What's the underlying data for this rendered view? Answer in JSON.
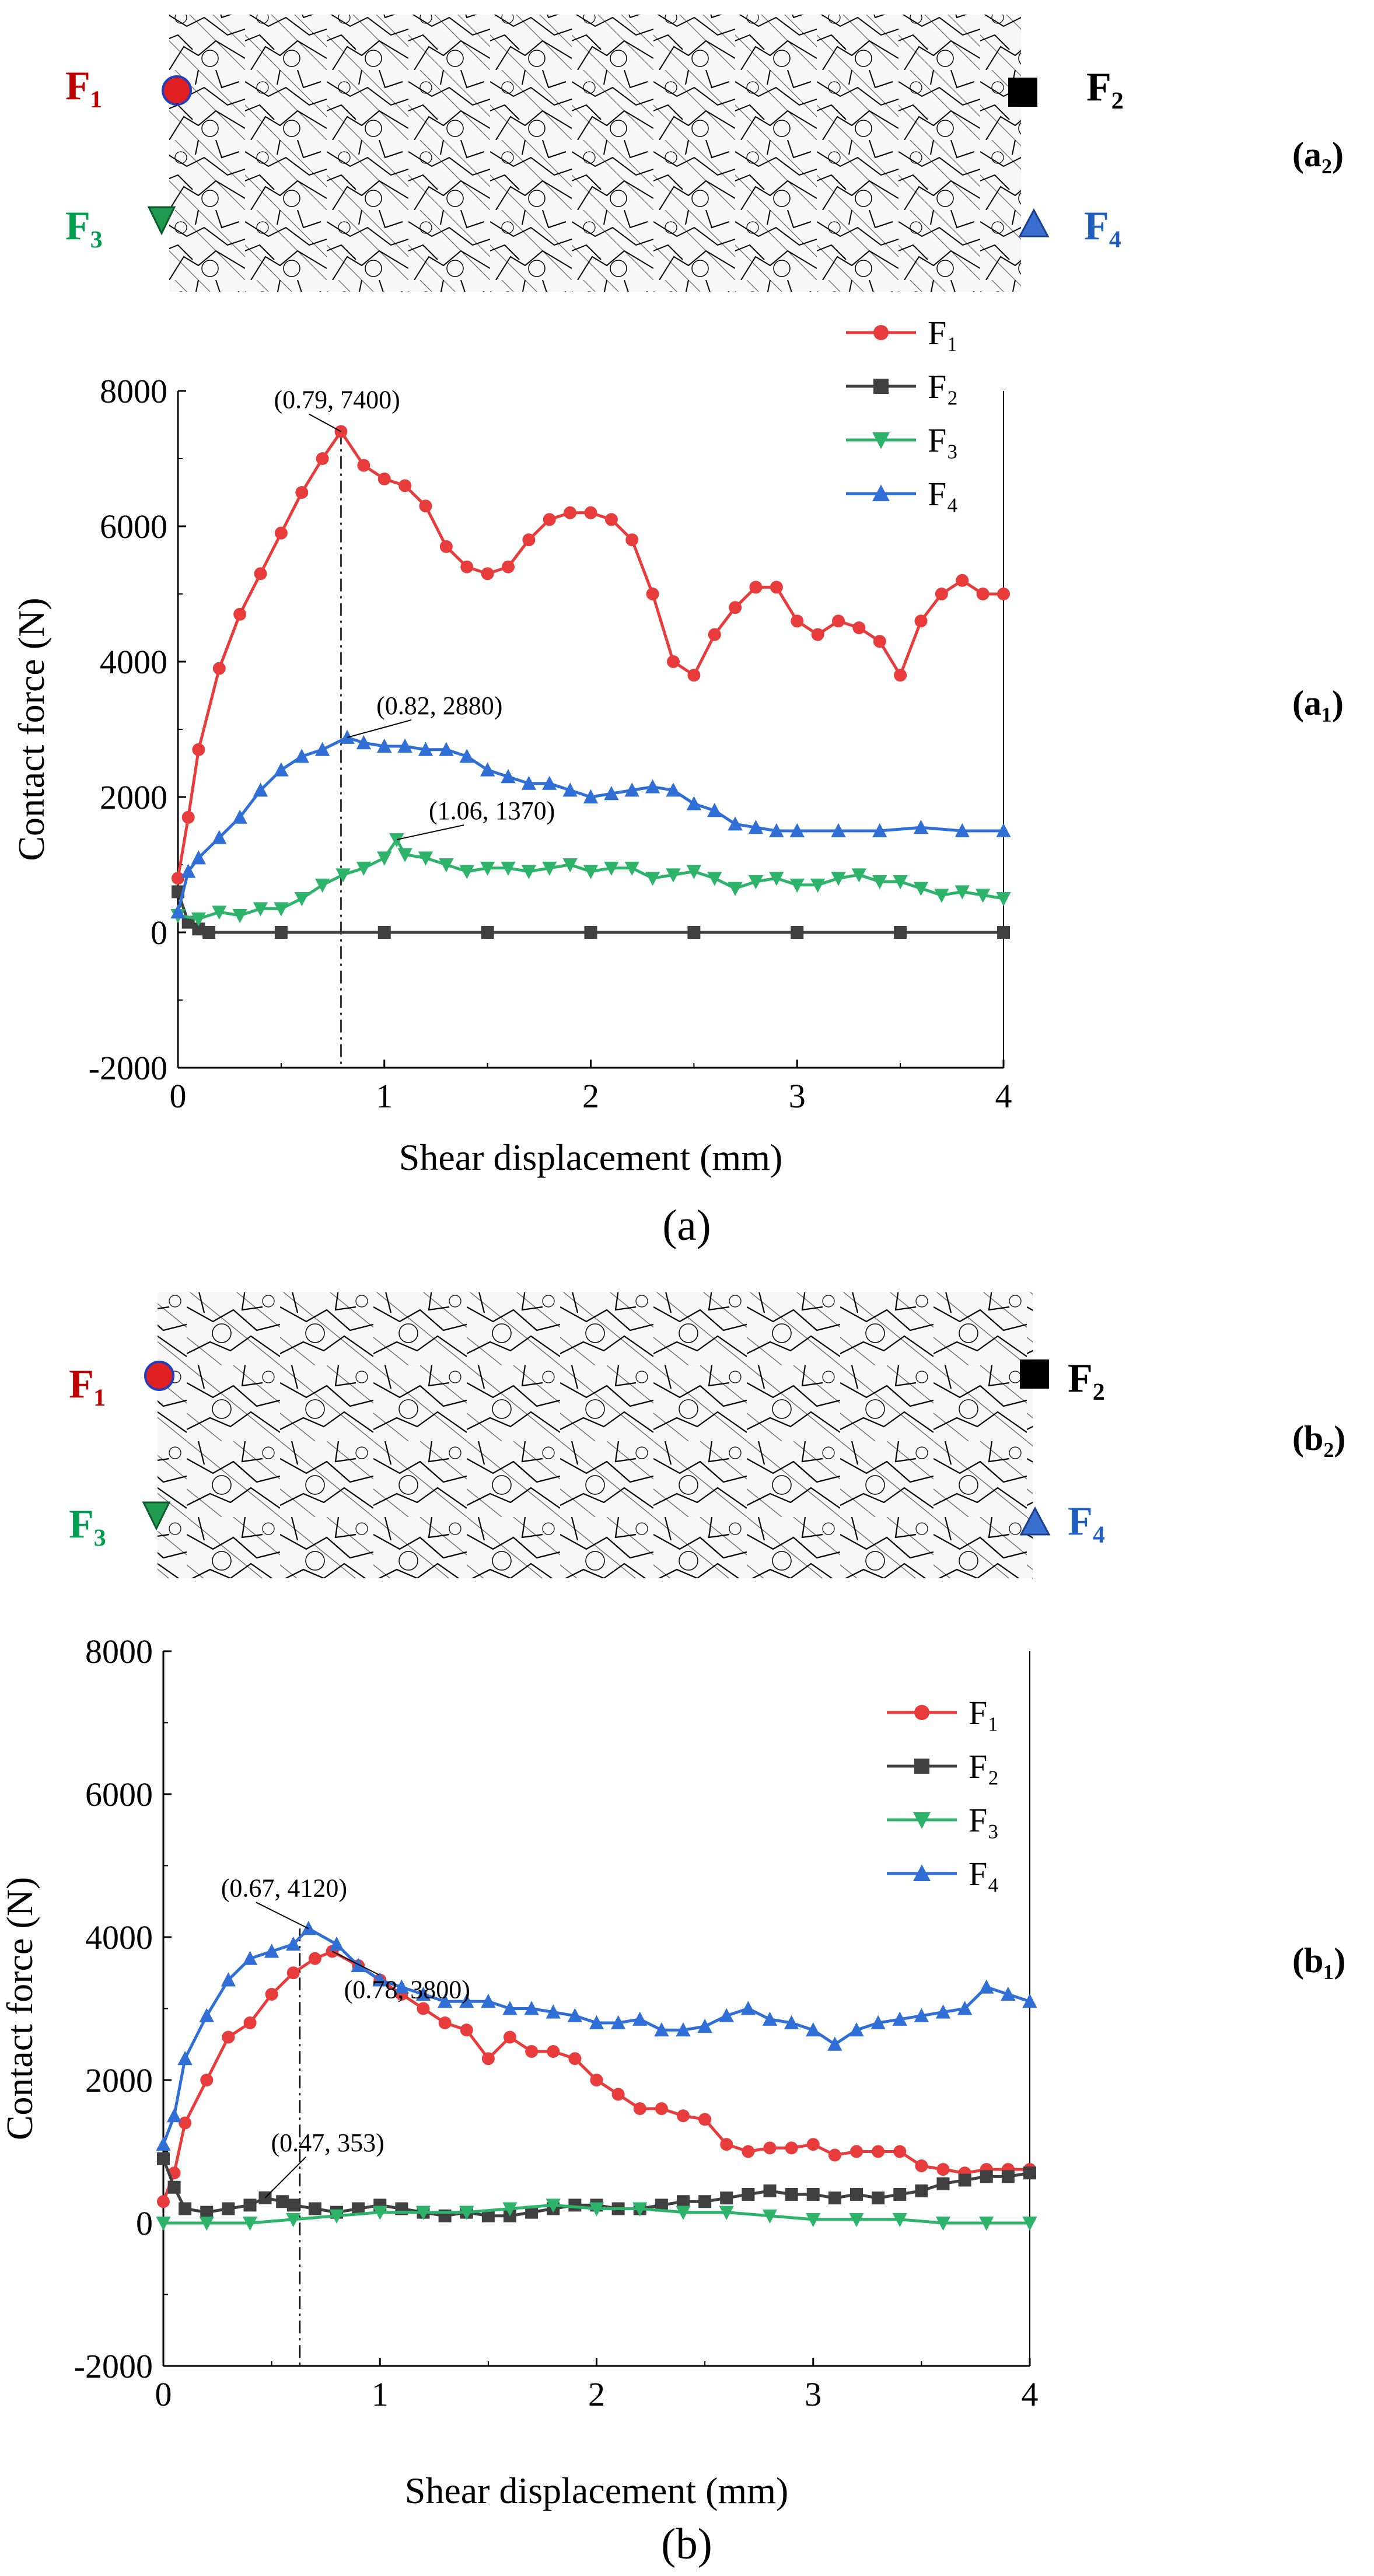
{
  "panels": [
    {
      "caption": "(a)",
      "network_label": "(a₂)",
      "chart_label": "(a₁)",
      "markers": [
        {
          "name": "F₁",
          "color": "#c00000",
          "shape": "circle"
        },
        {
          "name": "F₂",
          "color": "#000000",
          "shape": "square"
        },
        {
          "name": "F₃",
          "color": "#00a050",
          "shape": "triangle-down"
        },
        {
          "name": "F₄",
          "color": "#1f5fbf",
          "shape": "triangle-up"
        }
      ]
    },
    {
      "caption": "(b)",
      "network_label": "(b₂)",
      "chart_label": "(b₁)",
      "markers": [
        {
          "name": "F₁",
          "color": "#c00000",
          "shape": "circle"
        },
        {
          "name": "F₂",
          "color": "#000000",
          "shape": "square"
        },
        {
          "name": "F₃",
          "color": "#00a050",
          "shape": "triangle-down"
        },
        {
          "name": "F₄",
          "color": "#1f5fbf",
          "shape": "triangle-up"
        }
      ]
    }
  ],
  "chart_data": [
    {
      "type": "line",
      "xlabel": "Shear displacement (mm)",
      "ylabel": "Contact force (N)",
      "xlim": [
        0,
        4
      ],
      "ylim": [
        -2000,
        8000
      ],
      "xticks": [
        0,
        1,
        2,
        3,
        4
      ],
      "yticks": [
        -2000,
        0,
        2000,
        4000,
        6000,
        8000
      ],
      "legend_position": "top-right",
      "vline_x": 0.79,
      "annotations": [
        {
          "text": "(0.79, 7400)",
          "x": 0.79,
          "y": 7400
        },
        {
          "text": "(0.82, 2880)",
          "x": 0.82,
          "y": 2880
        },
        {
          "text": "(1.06, 1370)",
          "x": 1.06,
          "y": 1370
        }
      ],
      "series": [
        {
          "name": "F₁",
          "color": "#e83c3c",
          "marker": "circle",
          "x": [
            0,
            0.05,
            0.1,
            0.2,
            0.3,
            0.4,
            0.5,
            0.6,
            0.7,
            0.79,
            0.9,
            1.0,
            1.1,
            1.2,
            1.3,
            1.4,
            1.5,
            1.6,
            1.7,
            1.8,
            1.9,
            2.0,
            2.1,
            2.2,
            2.3,
            2.4,
            2.5,
            2.6,
            2.7,
            2.8,
            2.9,
            3.0,
            3.1,
            3.2,
            3.3,
            3.4,
            3.5,
            3.6,
            3.7,
            3.8,
            3.9,
            4.0
          ],
          "y": [
            800,
            1700,
            2700,
            3900,
            4700,
            5300,
            5900,
            6500,
            7000,
            7400,
            6900,
            6700,
            6600,
            6300,
            5700,
            5400,
            5300,
            5400,
            5800,
            6100,
            6200,
            6200,
            6100,
            5800,
            5000,
            4000,
            3800,
            4400,
            4800,
            5100,
            5100,
            4600,
            4400,
            4600,
            4500,
            4300,
            3800,
            4600,
            5000,
            5200,
            5000,
            5000
          ]
        },
        {
          "name": "F₂",
          "color": "#404040",
          "marker": "square",
          "x": [
            0,
            0.05,
            0.1,
            0.15,
            0.5,
            1.0,
            1.5,
            2.0,
            2.5,
            3.0,
            3.5,
            4.0
          ],
          "y": [
            600,
            150,
            50,
            0,
            0,
            0,
            0,
            0,
            0,
            0,
            0,
            0
          ]
        },
        {
          "name": "F₃",
          "color": "#2db36a",
          "marker": "triangle-down",
          "x": [
            0,
            0.1,
            0.2,
            0.3,
            0.4,
            0.5,
            0.6,
            0.7,
            0.8,
            0.9,
            1.0,
            1.06,
            1.1,
            1.2,
            1.3,
            1.4,
            1.5,
            1.6,
            1.7,
            1.8,
            1.9,
            2.0,
            2.1,
            2.2,
            2.3,
            2.4,
            2.5,
            2.6,
            2.7,
            2.8,
            2.9,
            3.0,
            3.1,
            3.2,
            3.3,
            3.4,
            3.5,
            3.6,
            3.7,
            3.8,
            3.9,
            4.0
          ],
          "y": [
            250,
            200,
            300,
            250,
            350,
            350,
            500,
            700,
            850,
            950,
            1100,
            1370,
            1150,
            1100,
            1000,
            900,
            950,
            950,
            900,
            950,
            1000,
            900,
            950,
            950,
            800,
            850,
            900,
            800,
            650,
            750,
            800,
            700,
            700,
            800,
            850,
            750,
            750,
            650,
            550,
            600,
            550,
            500
          ]
        },
        {
          "name": "F₄",
          "color": "#2f6fd6",
          "marker": "triangle-up",
          "x": [
            0,
            0.05,
            0.1,
            0.2,
            0.3,
            0.4,
            0.5,
            0.6,
            0.7,
            0.82,
            0.9,
            1.0,
            1.1,
            1.2,
            1.3,
            1.4,
            1.5,
            1.6,
            1.7,
            1.8,
            1.9,
            2.0,
            2.1,
            2.2,
            2.3,
            2.4,
            2.5,
            2.6,
            2.7,
            2.8,
            2.9,
            3.0,
            3.2,
            3.4,
            3.6,
            3.8,
            4.0
          ],
          "y": [
            300,
            900,
            1100,
            1400,
            1700,
            2100,
            2400,
            2600,
            2700,
            2880,
            2800,
            2750,
            2750,
            2700,
            2700,
            2600,
            2400,
            2300,
            2200,
            2200,
            2100,
            2000,
            2050,
            2100,
            2150,
            2100,
            1900,
            1800,
            1600,
            1550,
            1500,
            1500,
            1500,
            1500,
            1550,
            1500,
            1500
          ]
        }
      ]
    },
    {
      "type": "line",
      "xlabel": "Shear displacement (mm)",
      "ylabel": "Contact force (N)",
      "xlim": [
        0,
        4
      ],
      "ylim": [
        -2000,
        8000
      ],
      "xticks": [
        0,
        1,
        2,
        3,
        4
      ],
      "yticks": [
        -2000,
        0,
        2000,
        4000,
        6000,
        8000
      ],
      "legend_position": "top-right",
      "vline_x": 0.63,
      "annotations": [
        {
          "text": "(0.67, 4120)",
          "x": 0.67,
          "y": 4120
        },
        {
          "text": "(0.78, 3800)",
          "x": 0.78,
          "y": 3800
        },
        {
          "text": "(0.47, 353)",
          "x": 0.47,
          "y": 353
        }
      ],
      "series": [
        {
          "name": "F₁",
          "color": "#e83c3c",
          "marker": "circle",
          "x": [
            0,
            0.05,
            0.1,
            0.2,
            0.3,
            0.4,
            0.5,
            0.6,
            0.7,
            0.78,
            0.9,
            1.0,
            1.1,
            1.2,
            1.3,
            1.4,
            1.5,
            1.6,
            1.7,
            1.8,
            1.9,
            2.0,
            2.1,
            2.2,
            2.3,
            2.4,
            2.5,
            2.6,
            2.7,
            2.8,
            2.9,
            3.0,
            3.1,
            3.2,
            3.3,
            3.4,
            3.5,
            3.6,
            3.7,
            3.8,
            3.9,
            4.0
          ],
          "y": [
            300,
            700,
            1400,
            2000,
            2600,
            2800,
            3200,
            3500,
            3700,
            3800,
            3600,
            3400,
            3200,
            3000,
            2800,
            2700,
            2300,
            2600,
            2400,
            2400,
            2300,
            2000,
            1800,
            1600,
            1600,
            1500,
            1450,
            1100,
            1000,
            1050,
            1050,
            1100,
            950,
            1000,
            1000,
            1000,
            800,
            750,
            700,
            750,
            750,
            750
          ]
        },
        {
          "name": "F₂",
          "color": "#404040",
          "marker": "square",
          "x": [
            0,
            0.05,
            0.1,
            0.2,
            0.3,
            0.4,
            0.47,
            0.55,
            0.6,
            0.7,
            0.8,
            0.9,
            1.0,
            1.1,
            1.2,
            1.3,
            1.4,
            1.5,
            1.6,
            1.7,
            1.8,
            1.9,
            2.0,
            2.1,
            2.2,
            2.3,
            2.4,
            2.5,
            2.6,
            2.7,
            2.8,
            2.9,
            3.0,
            3.1,
            3.2,
            3.3,
            3.4,
            3.5,
            3.6,
            3.7,
            3.8,
            3.9,
            4.0
          ],
          "y": [
            900,
            500,
            200,
            150,
            200,
            250,
            353,
            300,
            250,
            200,
            150,
            200,
            250,
            200,
            150,
            100,
            150,
            100,
            100,
            150,
            200,
            250,
            250,
            200,
            200,
            250,
            300,
            300,
            350,
            400,
            450,
            400,
            400,
            350,
            400,
            350,
            400,
            450,
            550,
            600,
            650,
            650,
            700
          ]
        },
        {
          "name": "F₃",
          "color": "#2db36a",
          "marker": "triangle-down",
          "x": [
            0,
            0.2,
            0.4,
            0.6,
            0.8,
            1.0,
            1.2,
            1.4,
            1.6,
            1.8,
            2.0,
            2.2,
            2.4,
            2.6,
            2.8,
            3.0,
            3.2,
            3.4,
            3.6,
            3.8,
            4.0
          ],
          "y": [
            0,
            0,
            0,
            50,
            100,
            150,
            150,
            150,
            200,
            250,
            200,
            200,
            150,
            150,
            100,
            50,
            50,
            50,
            0,
            0,
            0
          ]
        },
        {
          "name": "F₄",
          "color": "#2f6fd6",
          "marker": "triangle-up",
          "x": [
            0,
            0.05,
            0.1,
            0.2,
            0.3,
            0.4,
            0.5,
            0.6,
            0.67,
            0.8,
            0.9,
            1.0,
            1.1,
            1.2,
            1.3,
            1.4,
            1.5,
            1.6,
            1.7,
            1.8,
            1.9,
            2.0,
            2.1,
            2.2,
            2.3,
            2.4,
            2.5,
            2.6,
            2.7,
            2.8,
            2.9,
            3.0,
            3.1,
            3.2,
            3.3,
            3.4,
            3.5,
            3.6,
            3.7,
            3.8,
            3.9,
            4.0
          ],
          "y": [
            1100,
            1500,
            2300,
            2900,
            3400,
            3700,
            3800,
            3900,
            4120,
            3900,
            3600,
            3400,
            3300,
            3200,
            3100,
            3100,
            3100,
            3000,
            3000,
            2950,
            2900,
            2800,
            2800,
            2850,
            2700,
            2700,
            2750,
            2900,
            3000,
            2850,
            2800,
            2700,
            2500,
            2700,
            2800,
            2850,
            2900,
            2950,
            3000,
            3300,
            3200,
            3100
          ]
        }
      ]
    }
  ]
}
